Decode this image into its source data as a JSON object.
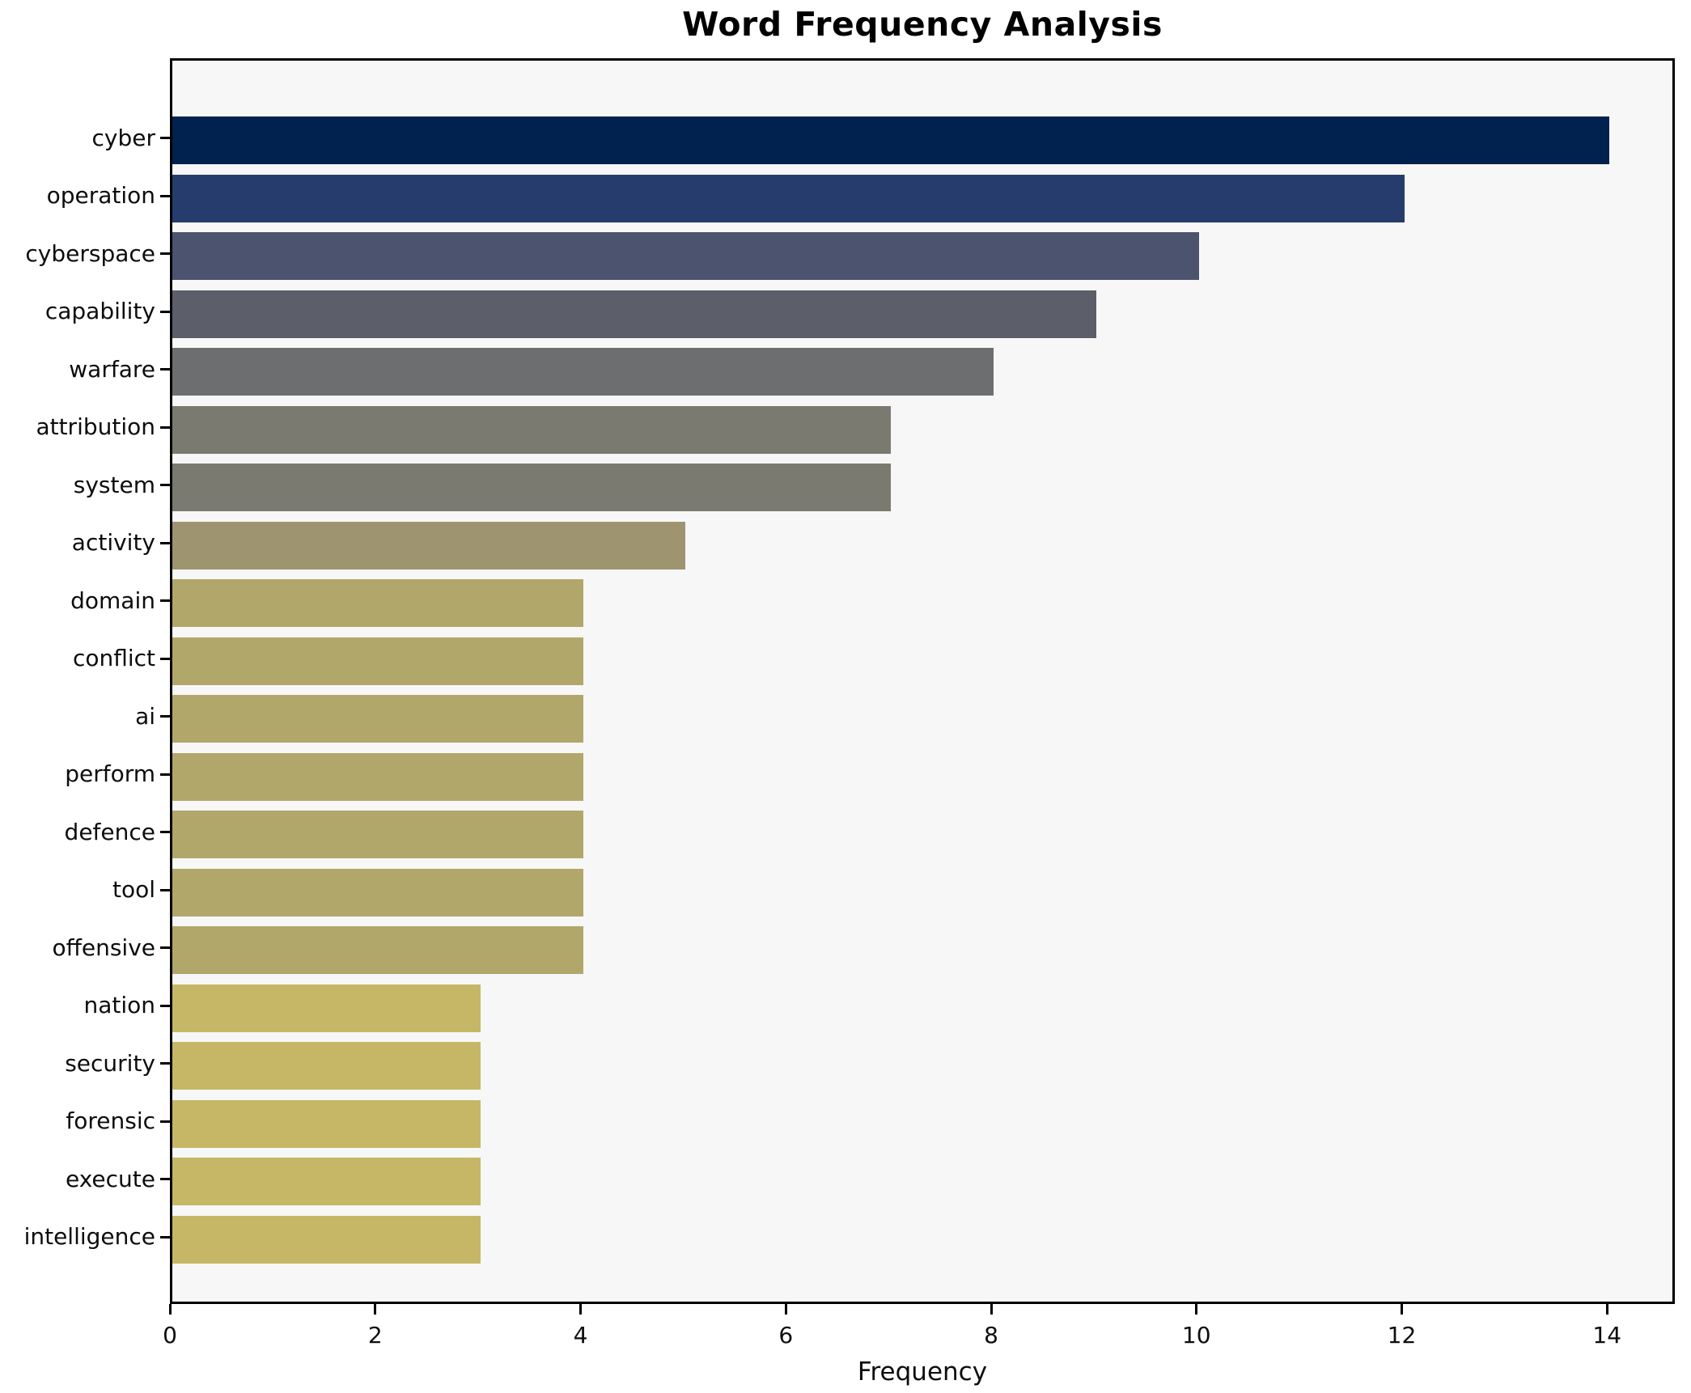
{
  "title": "Word Frequency Analysis",
  "chart_data": {
    "type": "bar",
    "orientation": "horizontal",
    "title": "Word Frequency Analysis",
    "xlabel": "Frequency",
    "ylabel": "",
    "categories": [
      "cyber",
      "operation",
      "cyberspace",
      "capability",
      "warfare",
      "attribution",
      "system",
      "activity",
      "domain",
      "conflict",
      "ai",
      "perform",
      "defence",
      "tool",
      "offensive",
      "nation",
      "security",
      "forensic",
      "execute",
      "intelligence"
    ],
    "values": [
      14,
      12,
      10,
      9,
      8,
      7,
      7,
      5,
      4,
      4,
      4,
      4,
      4,
      4,
      4,
      3,
      3,
      3,
      3,
      3
    ],
    "bar_colors": [
      "#01224e",
      "#253c6d",
      "#4b536e",
      "#5c5f69",
      "#6c6e70",
      "#7b7a70",
      "#7b7a70",
      "#9e9470",
      "#b1a76b",
      "#b1a76b",
      "#b1a76b",
      "#b1a76b",
      "#b1a76b",
      "#b1a76b",
      "#b1a76b",
      "#c6b767",
      "#c6b767",
      "#c6b767",
      "#c6b767",
      "#c6b767"
    ],
    "xlim": [
      0,
      14.66
    ],
    "xticks": [
      0,
      2,
      4,
      6,
      8,
      10,
      12,
      14
    ],
    "grid": false,
    "legend": null,
    "plot_background": "#f7f7f7",
    "figure_background": "#ffffff",
    "spine_color": "#000000"
  }
}
